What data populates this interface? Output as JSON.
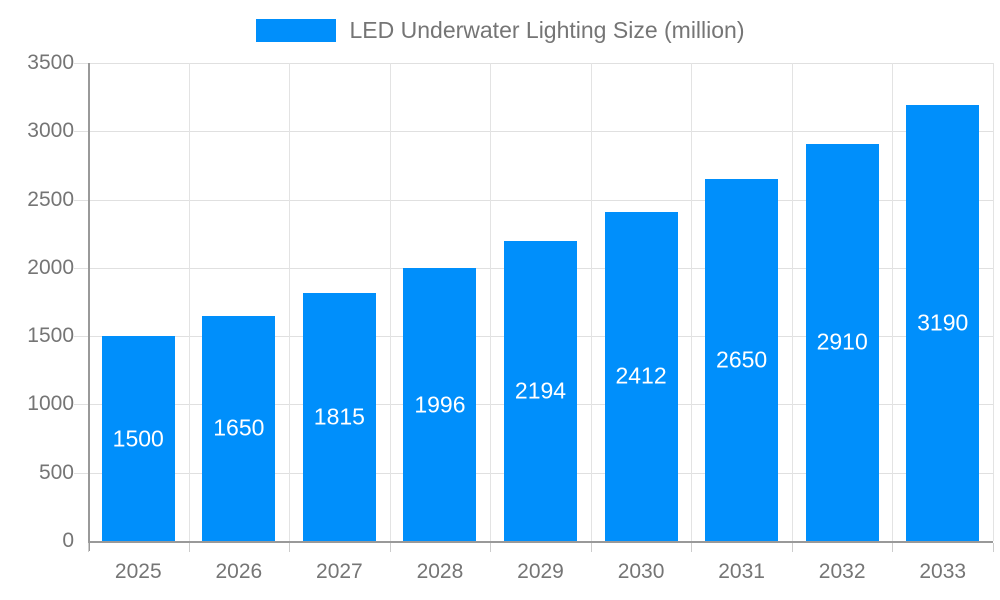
{
  "legend": {
    "label": "LED Underwater Lighting Size (million)"
  },
  "chart_data": {
    "type": "bar",
    "title": "LED Underwater Lighting Size (million)",
    "categories": [
      "2025",
      "2026",
      "2027",
      "2028",
      "2029",
      "2030",
      "2031",
      "2032",
      "2033"
    ],
    "values": [
      1500,
      1650,
      1815,
      1996,
      2194,
      2412,
      2650,
      2910,
      3190
    ],
    "series_name": "LED Underwater Lighting Size (million)",
    "xlabel": "",
    "ylabel": "",
    "ylim": [
      0,
      3500
    ],
    "yticks": [
      0,
      500,
      1000,
      1500,
      2000,
      2500,
      3000,
      3500
    ],
    "grid": true,
    "legend_position": "top-center",
    "colors": {
      "bar": "#008FFB",
      "bar_value_label": "#ffffff",
      "axis_text": "#757575",
      "grid_line": "#e0e0e0",
      "axis_line": "#999999"
    }
  }
}
